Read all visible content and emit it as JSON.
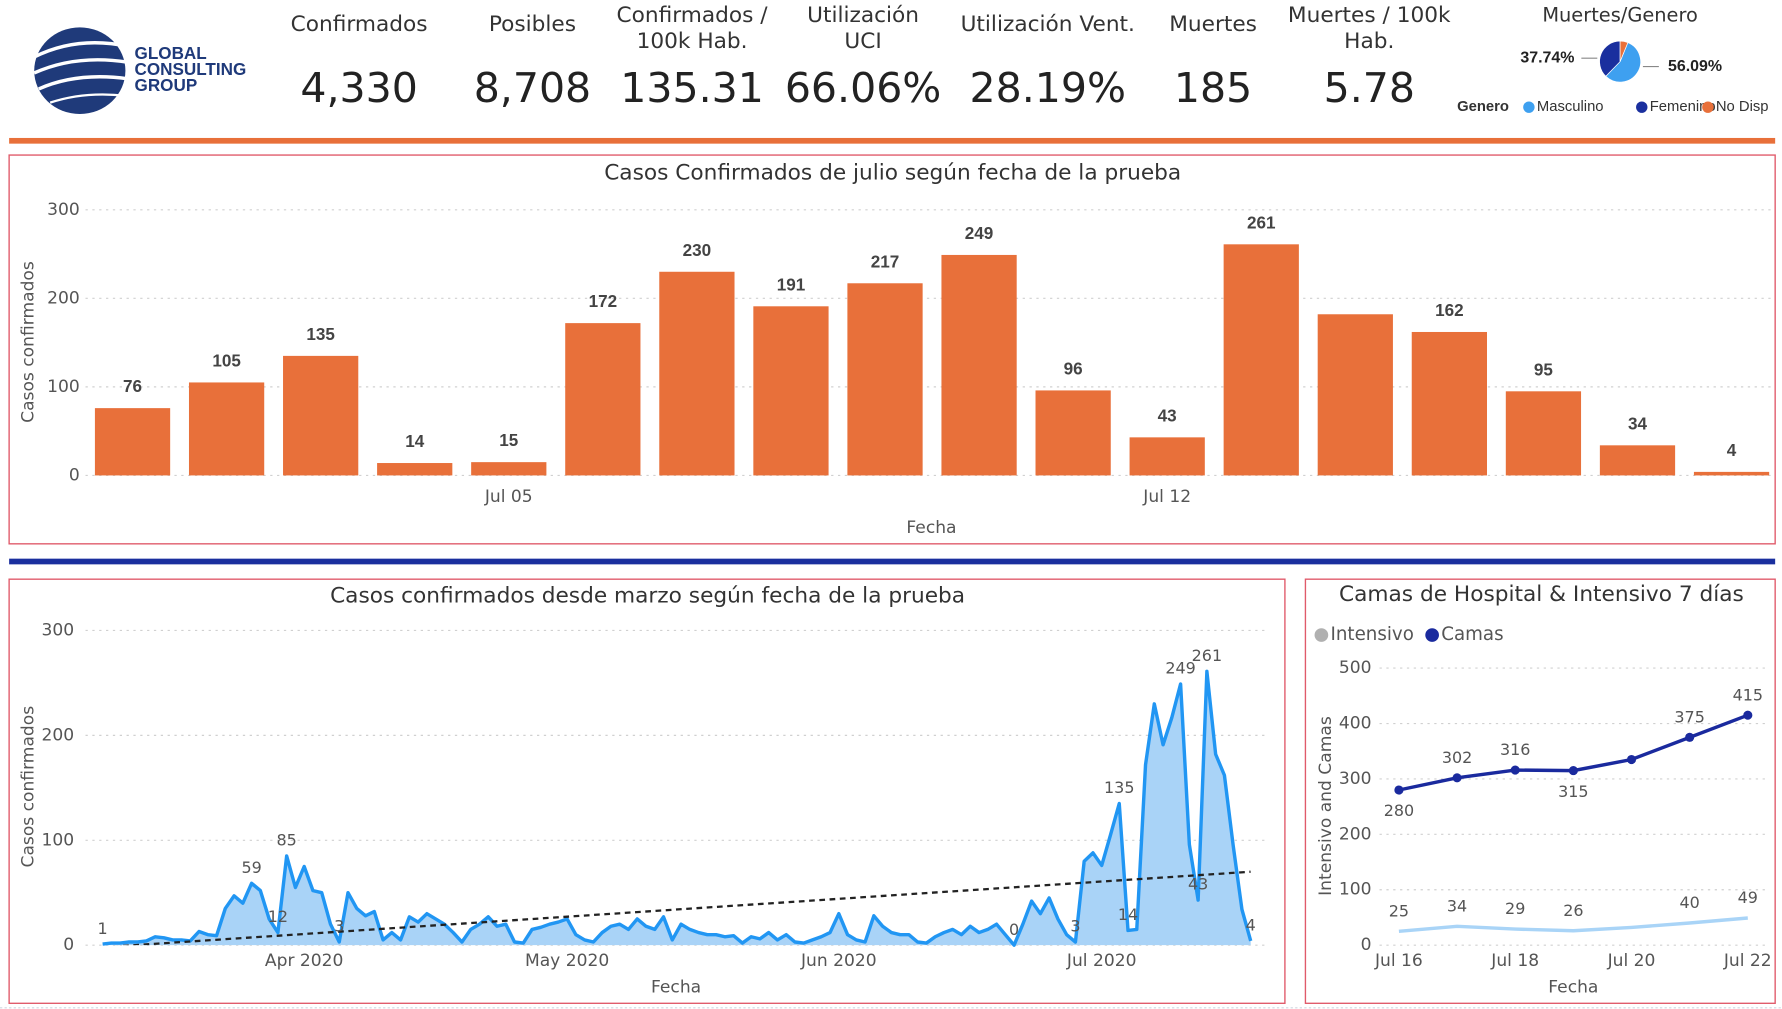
{
  "logo": [
    "GLOBAL",
    "CONSULTING",
    "GROUP"
  ],
  "kpis": [
    {
      "title": [
        "Confirmados"
      ],
      "value": "4,330"
    },
    {
      "title": [
        "Posibles"
      ],
      "value": "8,708"
    },
    {
      "title": [
        "Confirmados /",
        "100k Hab."
      ],
      "value": "135.31"
    },
    {
      "title": [
        "Utilización",
        "UCI"
      ],
      "value": "66.06%"
    },
    {
      "title": [
        "Utilización Vent."
      ],
      "value": "28.19%"
    },
    {
      "title": [
        "Muertes"
      ],
      "value": "185"
    },
    {
      "title": [
        "Muertes / 100k",
        "Hab."
      ],
      "value": "5.78"
    }
  ],
  "chart_data": [
    {
      "type": "pie",
      "title": "Muertes/Genero",
      "legend_title": "Genero",
      "categories": [
        "Masculino",
        "Femenino",
        "No Disp"
      ],
      "values": [
        56.09,
        37.74,
        6.17
      ],
      "value_labels": [
        "56.09%",
        "37.74%",
        null
      ],
      "colors": [
        "#3ea0f0",
        "#1a2f9e",
        "#e8703a"
      ]
    },
    {
      "type": "bar",
      "title": "Casos Confirmados de julio según fecha de la prueba",
      "x_label": "Fecha",
      "y_label": "Casos confirmados",
      "categories": [
        null,
        null,
        null,
        null,
        "Jul 05",
        null,
        null,
        null,
        null,
        null,
        null,
        "Jul 12",
        null,
        null,
        null,
        null,
        null,
        null
      ],
      "values": [
        76,
        105,
        135,
        14,
        15,
        172,
        230,
        191,
        217,
        249,
        96,
        43,
        261,
        182,
        162,
        95,
        34,
        4
      ],
      "value_labels": [
        "76",
        "105",
        "135",
        "14",
        "15",
        "172",
        "230",
        "191",
        "217",
        "249",
        "96",
        "43",
        "261",
        null,
        "162",
        "95",
        "34",
        "4"
      ],
      "color": "#e8703a",
      "ylim": [
        0,
        300
      ],
      "yticks": [
        0,
        100,
        200,
        300
      ],
      "grid": true
    },
    {
      "type": "area",
      "title": "Casos confirmados desde marzo según fecha de la prueba",
      "x_label": "Fecha",
      "y_label": "Casos confirmados",
      "categories": [
        null,
        null,
        null,
        null,
        null,
        null,
        null,
        null,
        null,
        null,
        null,
        null,
        null,
        null,
        null,
        null,
        null,
        null,
        null,
        null,
        null,
        null,
        null,
        "Apr 2020",
        null,
        null,
        null,
        null,
        null,
        null,
        null,
        null,
        null,
        null,
        null,
        null,
        null,
        null,
        null,
        null,
        null,
        null,
        null,
        null,
        null,
        null,
        null,
        null,
        null,
        null,
        null,
        null,
        null,
        "May 2020",
        null,
        null,
        null,
        null,
        null,
        null,
        null,
        null,
        null,
        null,
        null,
        null,
        null,
        null,
        null,
        null,
        null,
        null,
        null,
        null,
        null,
        null,
        null,
        null,
        null,
        null,
        null,
        null,
        null,
        null,
        "Jun 2020",
        null,
        null,
        null,
        null,
        null,
        null,
        null,
        null,
        null,
        null,
        null,
        null,
        null,
        null,
        null,
        null,
        null,
        null,
        null,
        null,
        null,
        null,
        null,
        null,
        null,
        null,
        null,
        null,
        null,
        "Jul 2020",
        null,
        null,
        null,
        null,
        null,
        null,
        null,
        null,
        null,
        null,
        null,
        null,
        null,
        null,
        null,
        null,
        null
      ],
      "values": [
        1,
        2,
        2,
        3,
        3,
        4,
        8,
        7,
        5,
        5,
        4,
        13,
        10,
        9,
        35,
        47,
        40,
        59,
        52,
        25,
        12,
        85,
        55,
        75,
        52,
        50,
        20,
        3,
        50,
        35,
        28,
        32,
        5,
        12,
        5,
        27,
        22,
        30,
        25,
        20,
        12,
        3,
        15,
        20,
        27,
        18,
        20,
        3,
        2,
        15,
        17,
        20,
        22,
        25,
        10,
        5,
        3,
        12,
        18,
        20,
        15,
        25,
        18,
        15,
        27,
        5,
        20,
        15,
        12,
        10,
        10,
        8,
        9,
        2,
        8,
        6,
        12,
        5,
        10,
        3,
        2,
        5,
        8,
        12,
        30,
        10,
        5,
        3,
        28,
        18,
        12,
        10,
        10,
        3,
        2,
        8,
        12,
        15,
        10,
        18,
        12,
        15,
        20,
        10,
        0,
        20,
        42,
        30,
        45,
        25,
        10,
        3,
        80,
        88,
        76,
        105,
        135,
        14,
        15,
        172,
        230,
        191,
        217,
        249,
        96,
        43,
        261,
        182,
        162,
        95,
        34,
        4
      ],
      "value_labels": [
        "1",
        null,
        null,
        null,
        null,
        null,
        null,
        null,
        null,
        null,
        null,
        null,
        null,
        null,
        null,
        null,
        null,
        "59",
        null,
        null,
        "12",
        "85",
        null,
        null,
        null,
        null,
        null,
        "3",
        null,
        null,
        null,
        null,
        null,
        null,
        null,
        null,
        null,
        null,
        null,
        null,
        null,
        null,
        null,
        null,
        null,
        null,
        null,
        null,
        null,
        null,
        null,
        null,
        null,
        null,
        null,
        null,
        null,
        null,
        null,
        null,
        null,
        null,
        null,
        null,
        null,
        null,
        null,
        null,
        null,
        null,
        null,
        null,
        null,
        null,
        null,
        null,
        null,
        null,
        null,
        null,
        null,
        null,
        null,
        null,
        null,
        null,
        null,
        null,
        null,
        null,
        null,
        null,
        null,
        null,
        null,
        null,
        null,
        null,
        null,
        null,
        null,
        null,
        null,
        null,
        "0",
        null,
        null,
        null,
        null,
        null,
        null,
        "3",
        null,
        null,
        null,
        null,
        "135",
        "14",
        null,
        null,
        null,
        null,
        null,
        "249",
        null,
        "43",
        "261",
        null,
        null,
        null,
        null,
        "4"
      ],
      "color": "#2196f3",
      "fill": "#a9d3f7",
      "trendline": {
        "values": [
          -2,
          70
        ],
        "color": "#222222"
      },
      "ylim": [
        0,
        300
      ],
      "yticks": [
        0,
        100,
        200,
        300
      ],
      "grid": true
    },
    {
      "type": "line",
      "title": "Camas de Hospital & Intensivo 7 días",
      "x_label": "Fecha",
      "y_label": "Intensivo and Camas",
      "categories": [
        "Jul 16",
        null,
        "Jul 18",
        null,
        "Jul 20",
        null,
        "Jul 22"
      ],
      "series": [
        {
          "name": "Intensivo",
          "color": "#a9d4f7",
          "legend_color": "#b0b0b0",
          "markers": false,
          "values": [
            25,
            34,
            29,
            26,
            32,
            40,
            49
          ],
          "value_labels": [
            "25",
            "34",
            "29",
            "26",
            null,
            "40",
            "49"
          ]
        },
        {
          "name": "Camas",
          "color": "#1a2a9e",
          "legend_color": "#1a2a9e",
          "markers": true,
          "values": [
            280,
            302,
            316,
            315,
            335,
            375,
            415
          ],
          "value_labels": [
            "280",
            "302",
            "316",
            "315",
            null,
            "375",
            "415"
          ]
        }
      ],
      "ylim": [
        0,
        500
      ],
      "yticks": [
        0,
        100,
        200,
        300,
        400,
        500
      ],
      "grid": true
    }
  ]
}
